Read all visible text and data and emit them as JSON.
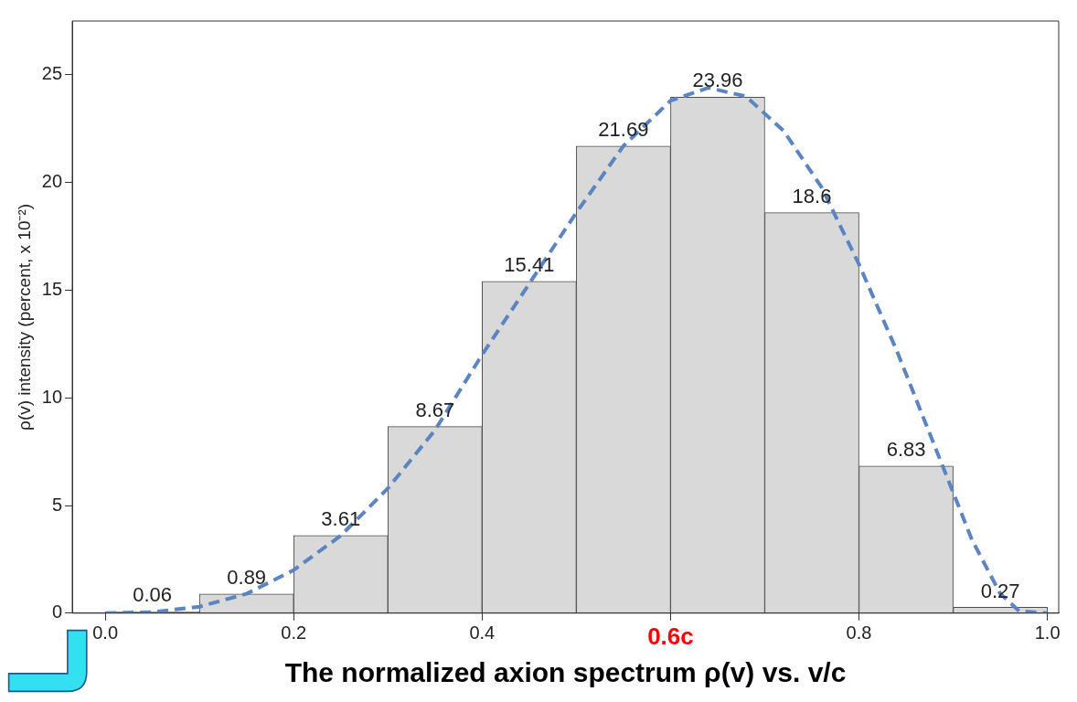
{
  "chart_data": {
    "type": "histogram",
    "bins": [
      0,
      0.1,
      0.2,
      0.3,
      0.4,
      0.5,
      0.6,
      0.7,
      0.8,
      0.9,
      1.0
    ],
    "values": [
      0.06,
      0.89,
      3.61,
      8.67,
      15.41,
      21.69,
      23.96,
      18.6,
      6.83,
      0.27
    ],
    "color": "#d9d9d9",
    "value_labels": [
      "0.06",
      "0.89",
      "3.61",
      "8.67",
      "15.41",
      "21.69",
      "23.96",
      "18.6",
      "6.83",
      "0.27"
    ],
    "series": [
      {
        "type": "line",
        "color": "#5b84c0",
        "line_style": "dashed",
        "x": [
          0,
          0.05,
          0.1,
          0.15,
          0.2,
          0.25,
          0.3,
          0.35,
          0.4,
          0.45,
          0.5,
          0.55,
          0.6,
          0.64,
          0.68,
          0.72,
          0.76,
          0.8,
          0.84,
          0.88,
          0.92,
          0.95,
          0.97,
          1.0
        ],
        "values": [
          0,
          0.05,
          0.3,
          0.9,
          2.0,
          3.6,
          5.8,
          8.5,
          12.0,
          15.3,
          18.6,
          21.7,
          23.8,
          24.4,
          24.0,
          22.4,
          19.8,
          16.2,
          12.2,
          7.8,
          3.4,
          0.9,
          0.1,
          0
        ]
      }
    ],
    "xlabel": "The normalized axion spectrum ρ(v) vs. v/c",
    "ylabel": "ρ(v) intensity (percent, x 10⁻²)",
    "xlim": [
      -0.035,
      1.012
    ],
    "xticks": [
      {
        "value": 0,
        "label": "0.0"
      },
      0.2,
      0.4,
      {
        "value": 0.6,
        "label": "0.6c"
      },
      0.8,
      {
        "value": 1.0,
        "label": "1.0"
      }
    ],
    "ylim": [
      0,
      27.5
    ],
    "yticks": [
      0,
      5,
      10,
      15,
      20,
      25
    ],
    "grid": false,
    "legend": false
  }
}
